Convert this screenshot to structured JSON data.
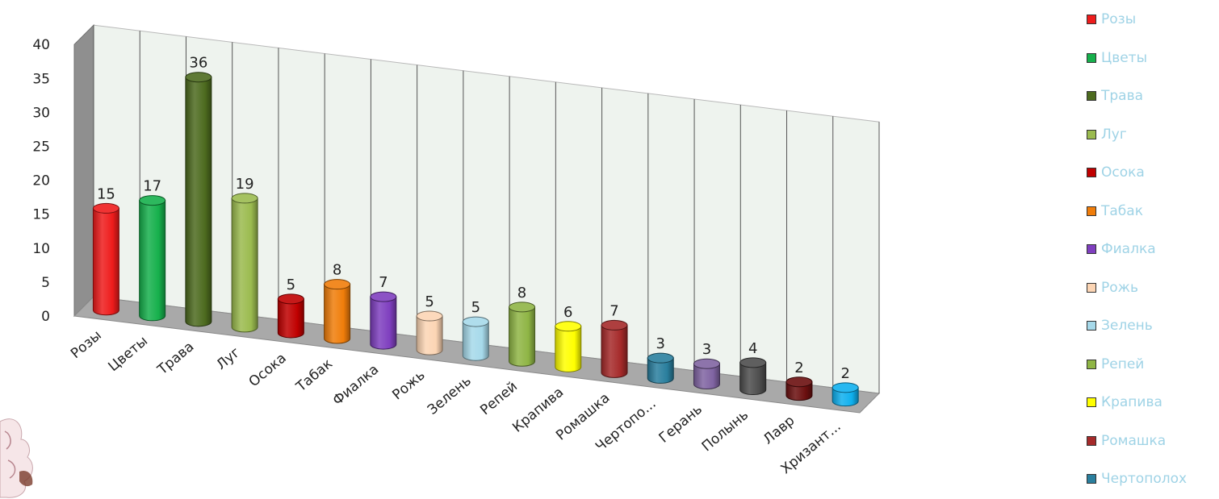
{
  "chart_data": {
    "type": "bar",
    "style": "3d-cylinder",
    "categories": [
      "Розы",
      "Цветы",
      "Трава",
      "Луг",
      "Осока",
      "Табак",
      "Фиалка",
      "Рожь",
      "Зелень",
      "Репей",
      "Крапива",
      "Ромашка",
      "Чертопо...",
      "Герань",
      "Полынь",
      "Лавр",
      "Хризант..."
    ],
    "values": [
      15,
      17,
      36,
      19,
      5,
      8,
      7,
      5,
      5,
      8,
      6,
      7,
      3,
      3,
      4,
      2,
      2
    ],
    "data_labels": [
      "15",
      "17",
      "36",
      "19",
      "5",
      "8",
      "7",
      "5",
      "5",
      "8",
      "6",
      "7",
      "3",
      "3",
      "4",
      "2",
      "2"
    ],
    "colors": [
      "#ee1c1c",
      "#16b04c",
      "#4d6b1f",
      "#9bbb4f",
      "#c00000",
      "#f07d0a",
      "#7f3fbf",
      "#fcd5b4",
      "#a6d9ea",
      "#8fb545",
      "#ffff00",
      "#a52a2a",
      "#2a7f9e",
      "#8064a2",
      "#4d4d4d",
      "#6b0f0f",
      "#0fb0ee"
    ],
    "y_ticks": [
      "0",
      "5",
      "10",
      "15",
      "20",
      "25",
      "30",
      "35",
      "40"
    ],
    "ylim": [
      0,
      40
    ],
    "grid": true,
    "legend_position": "right",
    "legend": [
      "Розы",
      "Цветы",
      "Трава",
      "Луг",
      "Осока",
      "Табак",
      "Фиалка",
      "Рожь",
      "Зелень",
      "Репей",
      "Крапива",
      "Ромашка",
      "Чертополох"
    ],
    "title": "",
    "xlabel": "",
    "ylabel": ""
  }
}
